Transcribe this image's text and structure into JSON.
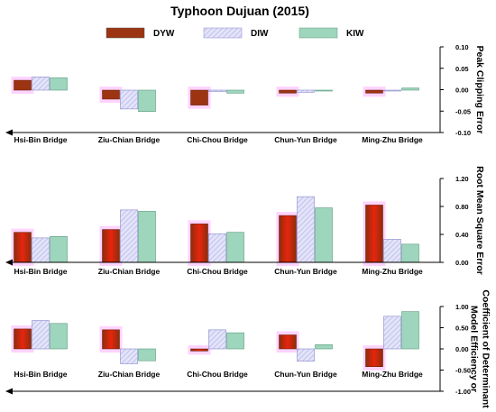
{
  "chart_data": {
    "type": "bar",
    "title": "Typhoon Dujuan (2015)",
    "categories": [
      "Hsi-Bin Bridge",
      "Ziu-Chian Bridge",
      "Chi-Chou Bridge",
      "Chun-Yun Bridge",
      "Ming-Zhu Bridge"
    ],
    "legend": [
      "DYW",
      "DIW",
      "KIW"
    ],
    "colors": {
      "DYW": "#9c3411",
      "DIW": "#d6d6f5",
      "KIW": "#9ed6bd",
      "DYW_mid": "#e8250e",
      "highlight": "#ff00ff"
    },
    "panels": [
      {
        "ylabel": "Peak Clipping Error",
        "ylim": [
          -0.1,
          0.1
        ],
        "yticks": [
          "0.10",
          "0.05",
          "0.00",
          "-0.05",
          "-0.10"
        ],
        "yticks_values": [
          0.1,
          0.05,
          0.0,
          -0.05,
          -0.1
        ],
        "series": [
          {
            "name": "DYW",
            "values": [
              0.022,
              -0.022,
              -0.036,
              -0.008,
              -0.008
            ]
          },
          {
            "name": "DIW",
            "values": [
              0.03,
              -0.045,
              -0.004,
              -0.006,
              -0.002
            ]
          },
          {
            "name": "KIW",
            "values": [
              0.028,
              -0.051,
              -0.008,
              -0.003,
              0.004
            ]
          }
        ]
      },
      {
        "ylabel": "Root Mean Square Error",
        "ylim": [
          0.0,
          1.2
        ],
        "yticks": [
          "1.20",
          "0.80",
          "0.40",
          "0.00"
        ],
        "yticks_values": [
          1.2,
          0.8,
          0.4,
          0.0
        ],
        "series": [
          {
            "name": "DYW",
            "values": [
              0.43,
              0.47,
              0.55,
              0.67,
              0.82
            ]
          },
          {
            "name": "DIW",
            "values": [
              0.35,
              0.75,
              0.41,
              0.94,
              0.33
            ]
          },
          {
            "name": "KIW",
            "values": [
              0.37,
              0.73,
              0.43,
              0.78,
              0.26
            ]
          }
        ]
      },
      {
        "ylabel": "Model Efficiency or Coefficient of Determinant",
        "ylabel_lines": [
          "Model Efficiency or",
          "Coefficient of Determinant"
        ],
        "ylim": [
          -1.0,
          1.0
        ],
        "yticks": [
          "1.00",
          "0.50",
          "0.00",
          "-0.50",
          "-1.00"
        ],
        "yticks_values": [
          1.0,
          0.5,
          0.0,
          -0.5,
          -1.0
        ],
        "series": [
          {
            "name": "DYW",
            "values": [
              0.47,
              0.45,
              -0.05,
              0.33,
              -0.42
            ]
          },
          {
            "name": "DIW",
            "values": [
              0.67,
              -0.35,
              0.45,
              -0.29,
              0.77
            ]
          },
          {
            "name": "KIW",
            "values": [
              0.6,
              -0.28,
              0.38,
              0.1,
              0.88
            ]
          }
        ]
      }
    ]
  }
}
